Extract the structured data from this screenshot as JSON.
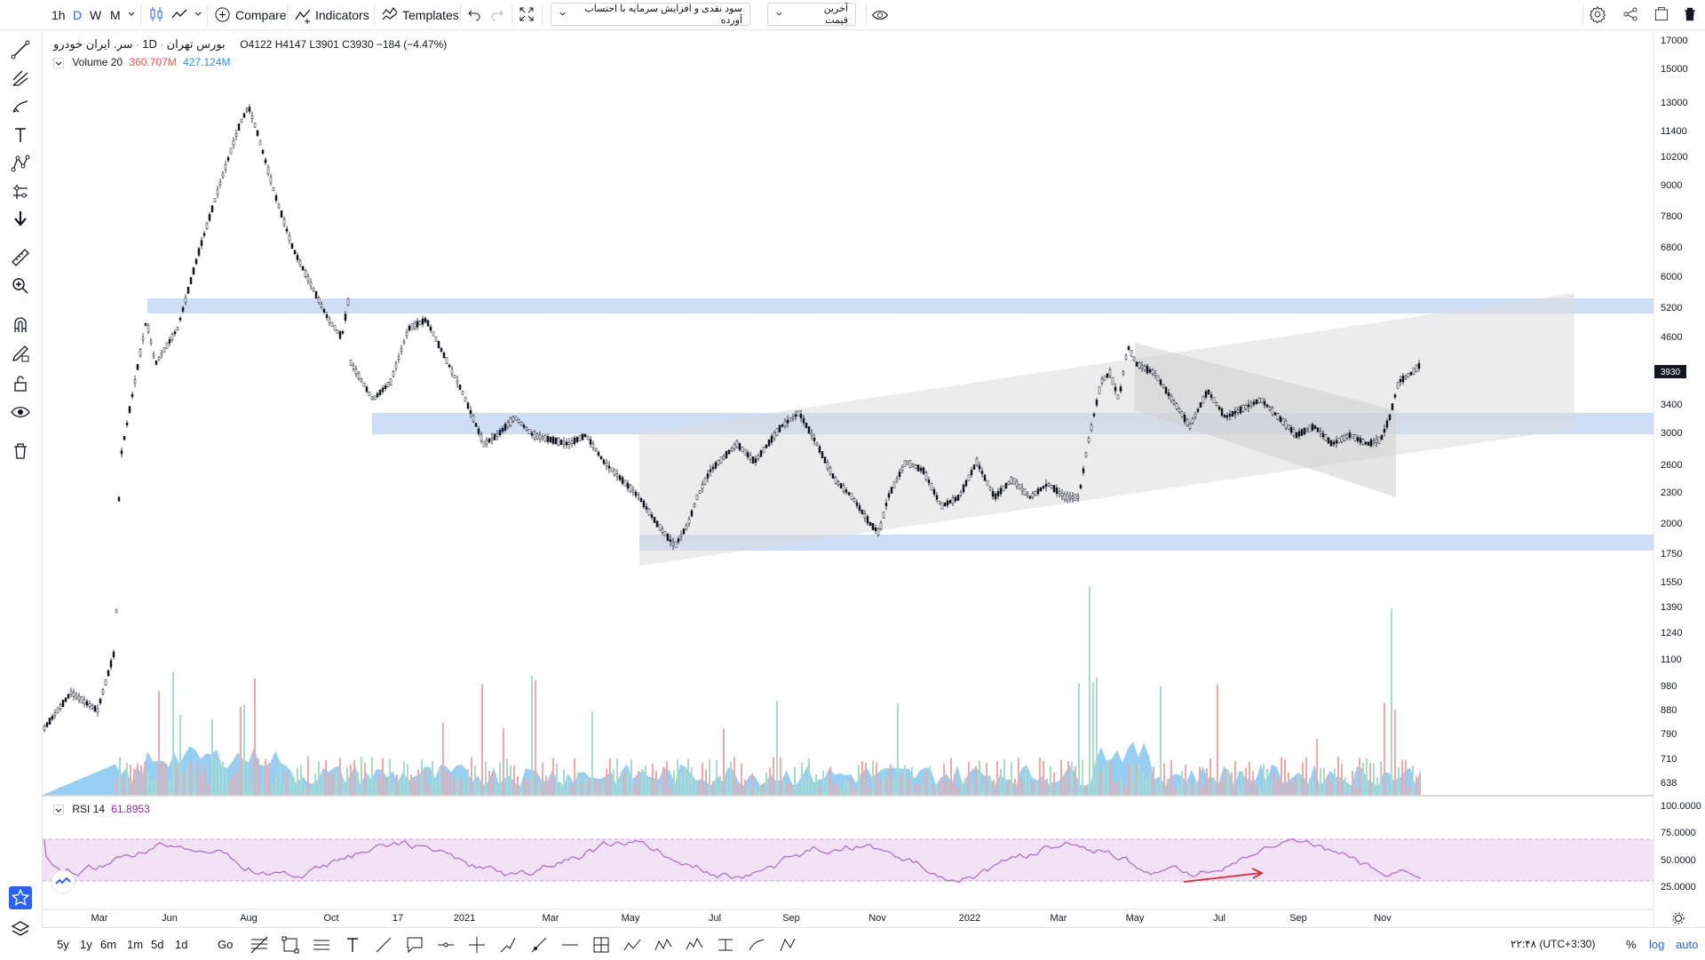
{
  "topbar": {
    "intervals": [
      "1h",
      "D",
      "W",
      "M"
    ],
    "active_interval": "D",
    "compare_label": "Compare",
    "indicators_label": "Indicators",
    "templates_label": "Templates",
    "dropdown1_label": "سود نقدی و افزایش سرمایه با احتساب آورده",
    "dropdown2_label": "آخرین قیمت"
  },
  "legend": {
    "symbol": "سر. ایران خودرو",
    "interval": "1D",
    "exchange": "بورس تهران",
    "open_label": "O",
    "open": "4122",
    "high_label": "H",
    "high": "4147",
    "low_label": "L",
    "low": "3901",
    "close_label": "C",
    "close": "3930",
    "change": "−184 (−4.47%)",
    "volume_label": "Volume 20",
    "volume_value1": "360.707M",
    "volume_value2": "427.124M",
    "rsi_label": "RSI 14",
    "rsi_value": "61.8953"
  },
  "price_axis": {
    "labels": [
      "17000",
      "15000",
      "13000",
      "11400",
      "10200",
      "9000",
      "7800",
      "6800",
      "6000",
      "5200",
      "4600",
      "3400",
      "3000",
      "2600",
      "2300",
      "2000",
      "1750",
      "1550",
      "1390",
      "1240",
      "1100",
      "980",
      "880",
      "790",
      "710",
      "638"
    ],
    "current_price": "3930",
    "current_price_color": "#131722"
  },
  "rsi_axis": {
    "labels": [
      "100.0000",
      "75.0000",
      "50.0000",
      "25.0000"
    ]
  },
  "time_axis": {
    "labels": [
      "Mar",
      "Jun",
      "Aug",
      "Oct",
      "17",
      "2021",
      "Mar",
      "May",
      "Jul",
      "Sep",
      "Nov",
      "2022",
      "Mar",
      "May",
      "Jul",
      "Sep",
      "Nov"
    ]
  },
  "bottombar": {
    "ranges": [
      "5y",
      "1y",
      "6m",
      "1m",
      "5d",
      "1d"
    ],
    "goto_label": "Go",
    "clock": "۲۲:۴۸ (UTC+3:30)",
    "percent_label": "%",
    "log_label": "log",
    "auto_label": "auto"
  },
  "colors": {
    "zone_blue": "#c5d8f5",
    "volume_area": "#74bff0",
    "vol_up": "#a8dcc4",
    "vol_down": "#f3a8a8",
    "rsi_line": "#b36fcc",
    "rsi_band": "#f1e2f5",
    "arrow": "#e2262c",
    "accent": "#2962ff"
  },
  "icons": {
    "left_toolbar": [
      "crosshair-icon",
      "trend-line-icon",
      "pitchfork-icon",
      "brush-icon",
      "text-icon",
      "pattern-icon",
      "prediction-icon",
      "arrow-down-icon",
      "ruler-icon",
      "zoom-icon",
      "magnet-icon",
      "lock-drawing-icon",
      "unlock-icon",
      "eye-icon",
      "trash-icon",
      "star-icon",
      "layers-icon"
    ]
  }
}
